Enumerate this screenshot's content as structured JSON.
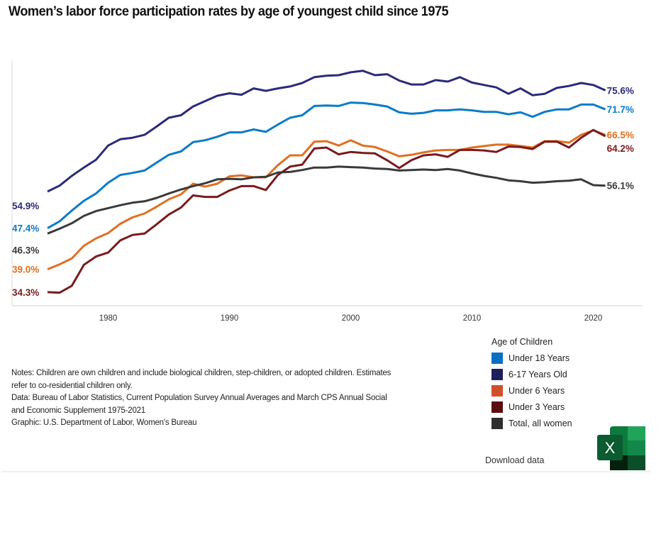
{
  "title": "Women’s labor force participation rates by age of youngest child since 1975",
  "chart_data": {
    "type": "line",
    "title": "Women’s labor force participation rates by age of youngest child since 1975",
    "xlabel": "",
    "ylabel": "",
    "x": [
      1975,
      1976,
      1977,
      1978,
      1979,
      1980,
      1981,
      1982,
      1983,
      1984,
      1985,
      1986,
      1987,
      1988,
      1989,
      1990,
      1991,
      1992,
      1993,
      1994,
      1995,
      1996,
      1997,
      1998,
      1999,
      2000,
      2001,
      2002,
      2003,
      2004,
      2005,
      2006,
      2007,
      2008,
      2009,
      2010,
      2011,
      2012,
      2013,
      2014,
      2015,
      2016,
      2017,
      2018,
      2019,
      2020,
      2021
    ],
    "x_ticks": [
      "1980",
      "1990",
      "2000",
      "2010",
      "2020"
    ],
    "x_tick_values": [
      1980,
      1990,
      2000,
      2010,
      2020
    ],
    "xlim": [
      1974,
      2024
    ],
    "ylim": [
      31.3,
      81.3
    ],
    "grid": false,
    "legend_title": "Age of Children",
    "legend_position": "bottom-right",
    "series": [
      {
        "name": "6-17 Years Old",
        "color": "#2b2a7a",
        "start_label": "54.9%",
        "end_label": "75.6%",
        "values": [
          54.9,
          56.1,
          58.1,
          59.8,
          61.4,
          64.3,
          65.6,
          65.9,
          66.5,
          68.2,
          70.0,
          70.5,
          72.3,
          73.4,
          74.5,
          75.0,
          74.7,
          76.0,
          75.5,
          76.0,
          76.4,
          77.1,
          78.3,
          78.6,
          78.7,
          79.3,
          79.6,
          78.7,
          78.9,
          77.6,
          76.8,
          76.8,
          77.7,
          77.4,
          78.3,
          77.2,
          76.7,
          76.2,
          74.9,
          76.0,
          74.6,
          74.9,
          76.1,
          76.5,
          77.1,
          76.7,
          75.6
        ]
      },
      {
        "name": "Under 18 Years",
        "color": "#0a7bc8",
        "start_label": "47.4%",
        "end_label": "71.7%",
        "values": [
          47.4,
          48.8,
          51.0,
          53.0,
          54.5,
          56.7,
          58.3,
          58.7,
          59.2,
          60.8,
          62.4,
          63.1,
          65.0,
          65.4,
          66.1,
          67.0,
          67.0,
          67.6,
          67.1,
          68.6,
          70.0,
          70.5,
          72.4,
          72.5,
          72.4,
          73.1,
          73.0,
          72.7,
          72.3,
          71.1,
          70.8,
          71.0,
          71.5,
          71.5,
          71.7,
          71.5,
          71.2,
          71.2,
          70.7,
          71.1,
          70.2,
          71.2,
          71.7,
          71.7,
          72.7,
          72.7,
          71.7
        ]
      },
      {
        "name": "Under 6 Years",
        "color": "#e07020",
        "start_label": "39.0%",
        "end_label": "66.5%",
        "values": [
          39.0,
          40.0,
          41.2,
          43.8,
          45.3,
          46.4,
          48.3,
          49.6,
          50.4,
          51.8,
          53.3,
          54.3,
          56.5,
          55.9,
          56.5,
          58.0,
          58.2,
          57.8,
          57.8,
          60.3,
          62.3,
          62.3,
          65.1,
          65.2,
          64.3,
          65.4,
          64.3,
          64.0,
          63.1,
          62.1,
          62.4,
          62.9,
          63.3,
          63.4,
          63.4,
          63.9,
          64.2,
          64.5,
          64.5,
          64.2,
          63.9,
          65.2,
          65.2,
          64.9,
          66.5,
          67.4,
          66.5
        ]
      },
      {
        "name": "Under 3 Years",
        "color": "#7a1a1c",
        "start_label": "34.3%",
        "end_label": "64.2%",
        "values": [
          34.3,
          34.2,
          35.6,
          39.9,
          41.6,
          42.4,
          44.9,
          46.0,
          46.3,
          48.2,
          50.2,
          51.6,
          54.1,
          53.8,
          53.8,
          55.1,
          56.0,
          56.0,
          55.2,
          58.3,
          60.0,
          60.4,
          63.7,
          63.9,
          62.5,
          63.0,
          62.8,
          62.7,
          61.3,
          59.7,
          61.3,
          62.3,
          62.5,
          62.0,
          63.4,
          63.4,
          63.3,
          63.0,
          64.1,
          64.0,
          63.6,
          65.1,
          65.1,
          63.9,
          65.9,
          67.5,
          66.2
        ]
      },
      {
        "name": "Total, all women",
        "color": "#3a3a3a",
        "start_label": "46.3%",
        "end_label": "56.1%",
        "values": [
          46.3,
          47.3,
          48.4,
          49.9,
          50.9,
          51.5,
          52.1,
          52.6,
          52.9,
          53.6,
          54.5,
          55.3,
          56.0,
          56.6,
          57.4,
          57.5,
          57.4,
          57.8,
          57.9,
          58.8,
          58.9,
          59.3,
          59.8,
          59.8,
          60.0,
          59.9,
          59.8,
          59.6,
          59.5,
          59.2,
          59.3,
          59.4,
          59.3,
          59.5,
          59.2,
          58.6,
          58.1,
          57.7,
          57.2,
          57.0,
          56.7,
          56.8,
          57.0,
          57.1,
          57.4,
          56.2,
          56.1
        ]
      }
    ]
  },
  "legend": {
    "title": "Age of Children",
    "items": [
      {
        "label": "Under 18 Years",
        "color": "#0a6fc2"
      },
      {
        "label": "6-17 Years Old",
        "color": "#1f1e5c"
      },
      {
        "label": "Under 6 Years",
        "color": "#d0502a"
      },
      {
        "label": "Under 3 Years",
        "color": "#5a0c0e"
      },
      {
        "label": "Total, all women",
        "color": "#2e2e2e"
      }
    ]
  },
  "notes": {
    "line1": "Notes: Children are own children and include biological children, step-children, or adopted children. Estimates",
    "line2": "refer to co-residential children only.",
    "line3": "Data: Bureau of Labor Statistics, Current Population Survey Annual Averages and March  CPS Annual Social",
    "line4": "and Economic Supplement 1975-2021",
    "line5": "Graphic: U.S. Department of Labor, Women's Bureau"
  },
  "download": {
    "label": "Download data",
    "icon": "excel-icon",
    "icon_letter": "X"
  }
}
